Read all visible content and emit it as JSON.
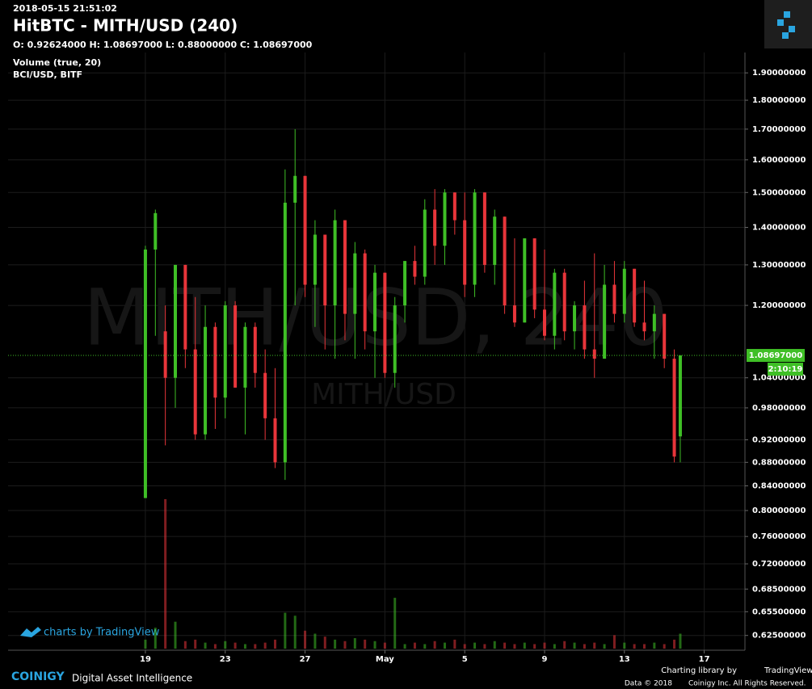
{
  "chart_data": {
    "type": "candlestick",
    "timestamp": "2018-05-15 21:51:02",
    "title": "HitBTC - MITH/USD (240)",
    "ohlc_header": "O: 0.92624000 H: 1.08697000 L: 0.88000000 C: 1.08697000",
    "volume_label": "Volume (true, 20)",
    "compare_label": "BCI/USD, BITF",
    "watermark": "MITH/USD, 240",
    "watermark_symbol": "MITH/USD",
    "log_scale": true,
    "grid": true,
    "up_color": "#3fbf26",
    "down_color": "#e8353a",
    "xlim": [
      -6.88,
      30.04
    ],
    "xticks": [
      {
        "value": 0,
        "label": "19"
      },
      {
        "value": 4,
        "label": "23"
      },
      {
        "value": 8,
        "label": "27"
      },
      {
        "value": 12,
        "label": "May"
      },
      {
        "value": 16,
        "label": "5"
      },
      {
        "value": 20,
        "label": "9"
      },
      {
        "value": 24,
        "label": "13"
      },
      {
        "value": 28,
        "label": "17"
      }
    ],
    "ylim": [
      0.607,
      1.978
    ],
    "yticks": [
      {
        "value": 1.9,
        "label": "1.90000000"
      },
      {
        "value": 1.8,
        "label": "1.80000000"
      },
      {
        "value": 1.7,
        "label": "1.70000000"
      },
      {
        "value": 1.6,
        "label": "1.60000000"
      },
      {
        "value": 1.5,
        "label": "1.50000000"
      },
      {
        "value": 1.4,
        "label": "1.40000000"
      },
      {
        "value": 1.3,
        "label": "1.30000000"
      },
      {
        "value": 1.2,
        "label": "1.20000000"
      },
      {
        "value": 1.04,
        "label": "1.04000000"
      },
      {
        "value": 0.98,
        "label": "0.98000000"
      },
      {
        "value": 0.92,
        "label": "0.92000000"
      },
      {
        "value": 0.88,
        "label": "0.88000000"
      },
      {
        "value": 0.84,
        "label": "0.84000000"
      },
      {
        "value": 0.8,
        "label": "0.80000000"
      },
      {
        "value": 0.76,
        "label": "0.76000000"
      },
      {
        "value": 0.72,
        "label": "0.72000000"
      },
      {
        "value": 0.685,
        "label": "0.68500000"
      },
      {
        "value": 0.655,
        "label": "0.65500000"
      },
      {
        "value": 0.625,
        "label": "0.62500000"
      }
    ],
    "last_price": {
      "value": 1.08697,
      "label": "1.08697000"
    },
    "countdown": "2:10:19",
    "x": [
      0,
      0.5,
      1,
      1.5,
      2,
      2.5,
      3,
      3.5,
      4,
      4.5,
      5,
      5.5,
      6,
      6.5,
      7,
      7.5,
      8,
      8.5,
      9,
      9.5,
      10,
      10.5,
      11,
      11.5,
      12,
      12.5,
      13,
      13.5,
      14,
      14.5,
      15,
      15.5,
      16,
      16.5,
      17,
      17.5,
      18,
      18.5,
      19,
      19.5,
      20,
      20.5,
      21,
      21.5,
      22,
      22.5,
      23,
      23.5,
      24,
      24.5,
      25,
      25.5,
      26,
      26.5,
      26.8
    ],
    "open": [
      0.82,
      1.34,
      1.14,
      1.04,
      1.3,
      1.1,
      0.93,
      1.15,
      1.0,
      1.2,
      1.02,
      1.15,
      1.05,
      0.96,
      0.88,
      1.47,
      1.55,
      1.25,
      1.38,
      1.2,
      1.42,
      1.18,
      1.33,
      1.14,
      1.28,
      1.05,
      1.2,
      1.31,
      1.27,
      1.45,
      1.35,
      1.5,
      1.42,
      1.25,
      1.5,
      1.3,
      1.43,
      1.2,
      1.16,
      1.37,
      1.19,
      1.13,
      1.28,
      1.14,
      1.2,
      1.1,
      1.08,
      1.25,
      1.18,
      1.29,
      1.16,
      1.14,
      1.18,
      1.08,
      0.92624
    ],
    "high": [
      1.35,
      1.45,
      1.2,
      1.3,
      1.3,
      1.22,
      1.2,
      1.16,
      1.21,
      1.21,
      1.16,
      1.16,
      1.1,
      1.06,
      1.57,
      1.7,
      1.55,
      1.42,
      1.38,
      1.45,
      1.42,
      1.36,
      1.34,
      1.3,
      1.28,
      1.22,
      1.31,
      1.35,
      1.48,
      1.51,
      1.51,
      1.5,
      1.5,
      1.51,
      1.5,
      1.45,
      1.43,
      1.37,
      1.37,
      1.37,
      1.34,
      1.29,
      1.29,
      1.21,
      1.26,
      1.33,
      1.3,
      1.31,
      1.31,
      1.29,
      1.26,
      1.2,
      1.18,
      1.1,
      1.08697
    ],
    "low": [
      0.82,
      1.13,
      0.91,
      0.98,
      1.06,
      0.92,
      0.92,
      0.94,
      0.96,
      1.02,
      0.93,
      1.02,
      0.92,
      0.87,
      0.85,
      1.2,
      1.22,
      1.15,
      1.1,
      1.08,
      1.12,
      1.08,
      1.1,
      1.04,
      1.04,
      1.02,
      1.16,
      1.25,
      1.25,
      1.3,
      1.3,
      1.38,
      1.22,
      1.22,
      1.28,
      1.25,
      1.18,
      1.15,
      1.16,
      1.17,
      1.12,
      1.1,
      1.12,
      1.1,
      1.08,
      1.04,
      1.08,
      1.16,
      1.16,
      1.15,
      1.12,
      1.08,
      1.06,
      0.88,
      0.88
    ],
    "close": [
      1.34,
      1.44,
      1.04,
      1.3,
      1.1,
      0.93,
      1.15,
      1.0,
      1.2,
      1.02,
      1.15,
      1.05,
      0.96,
      0.88,
      1.47,
      1.55,
      1.25,
      1.38,
      1.2,
      1.42,
      1.18,
      1.33,
      1.14,
      1.28,
      1.05,
      1.2,
      1.31,
      1.27,
      1.45,
      1.35,
      1.5,
      1.42,
      1.25,
      1.5,
      1.3,
      1.43,
      1.2,
      1.16,
      1.37,
      1.19,
      1.13,
      1.28,
      1.14,
      1.2,
      1.1,
      1.08,
      1.25,
      1.18,
      1.29,
      1.16,
      1.14,
      1.18,
      1.08,
      0.89,
      1.08697
    ],
    "volume": [
      6,
      14,
      100,
      18,
      5,
      6,
      4,
      3,
      5,
      4,
      3,
      3,
      4,
      6,
      24,
      22,
      12,
      10,
      8,
      6,
      5,
      7,
      6,
      5,
      4,
      34,
      3,
      4,
      3,
      5,
      4,
      6,
      3,
      4,
      3,
      5,
      4,
      3,
      4,
      3,
      4,
      3,
      5,
      4,
      3,
      4,
      3,
      9,
      4,
      3,
      3,
      4,
      3,
      6,
      10
    ]
  }
}
